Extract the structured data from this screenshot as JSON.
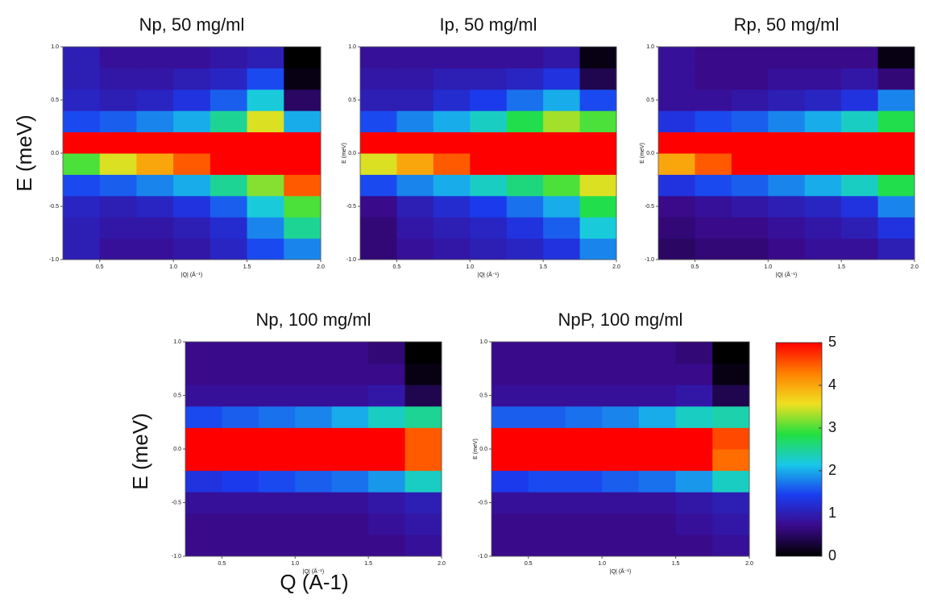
{
  "chart_data": [
    {
      "type": "heatmap",
      "title": "Np, 50 mg/ml",
      "x_label": "|Q| (Å⁻¹)",
      "xlim": [
        0.25,
        2.0
      ],
      "ylim": [
        -1.0,
        1.0
      ],
      "xticks": [
        0.5,
        {
          "value": 1.0,
          "label": "1.0"
        },
        1.5,
        {
          "value": 2.0,
          "label": "2.0"
        }
      ],
      "yticks": [
        {
          "value": -1.0,
          "label": "-1.0"
        },
        -0.5,
        {
          "value": 0.0,
          "label": "0.0"
        },
        0.5,
        {
          "value": 1.0,
          "label": "1.0"
        }
      ],
      "xbins": [
        0.25,
        0.5,
        0.75,
        1.0,
        1.25,
        1.5,
        1.75,
        2.0
      ],
      "ybins": [
        -1.0,
        -0.8,
        -0.6,
        -0.4,
        -0.2,
        0.0,
        0.2,
        0.4,
        0.6,
        0.8,
        1.0
      ],
      "z": [
        [
          1.0,
          0.8,
          0.8,
          0.9,
          1.1,
          1.5,
          1.8
        ],
        [
          1.0,
          0.9,
          0.9,
          1.0,
          1.2,
          1.8,
          2.5
        ],
        [
          1.1,
          1.0,
          1.1,
          1.3,
          1.6,
          2.2,
          3.0
        ],
        [
          1.5,
          1.6,
          1.8,
          2.0,
          2.5,
          3.2,
          4.5
        ],
        [
          3.0,
          3.5,
          4.0,
          4.5,
          5,
          5,
          5
        ],
        [
          5,
          5,
          5,
          5,
          5,
          5,
          5
        ],
        [
          1.5,
          1.6,
          1.8,
          2.0,
          2.5,
          3.5,
          2.0
        ],
        [
          1.1,
          1.0,
          1.1,
          1.3,
          1.6,
          2.2,
          0.5
        ],
        [
          1.0,
          0.9,
          0.9,
          1.0,
          1.1,
          1.5,
          0.1
        ],
        [
          1.0,
          0.8,
          0.8,
          0.8,
          0.9,
          1.0,
          0.0
        ]
      ]
    },
    {
      "type": "heatmap",
      "title": "Ip, 50 mg/ml",
      "x_label": "|Q| (Å⁻¹)",
      "y_label": "E (meV)",
      "xlim": [
        0.25,
        2.0
      ],
      "ylim": [
        -1.0,
        1.0
      ],
      "xticks": [
        0.5,
        {
          "value": 1.0,
          "label": "1.0"
        },
        1.5,
        {
          "value": 2.0,
          "label": "2.0"
        }
      ],
      "yticks": [
        {
          "value": -1.0,
          "label": "-1.0"
        },
        -0.5,
        {
          "value": 0.0,
          "label": "0.0"
        },
        0.5,
        {
          "value": 1.0,
          "label": "1.0"
        }
      ],
      "xbins": [
        0.25,
        0.5,
        0.75,
        1.0,
        1.25,
        1.5,
        1.75,
        2.0
      ],
      "ybins": [
        -1.0,
        -0.8,
        -0.6,
        -0.4,
        -0.2,
        0.0,
        0.2,
        0.4,
        0.6,
        0.8,
        1.0
      ],
      "z": [
        [
          0.6,
          0.8,
          0.9,
          1.0,
          1.1,
          1.3,
          1.8
        ],
        [
          0.6,
          0.9,
          1.0,
          1.1,
          1.3,
          1.6,
          2.2
        ],
        [
          0.7,
          1.0,
          1.2,
          1.4,
          1.7,
          2.0,
          2.8
        ],
        [
          1.5,
          1.8,
          2.0,
          2.3,
          2.6,
          3.0,
          3.5
        ],
        [
          3.5,
          4.0,
          4.5,
          5,
          5,
          5,
          5
        ],
        [
          5,
          5,
          5,
          5,
          5,
          5,
          5
        ],
        [
          1.5,
          1.8,
          2.0,
          2.3,
          2.8,
          3.3,
          3.0
        ],
        [
          1.0,
          1.0,
          1.2,
          1.4,
          1.7,
          2.0,
          1.5
        ],
        [
          0.9,
          0.9,
          1.0,
          1.0,
          1.1,
          1.3,
          0.4
        ],
        [
          0.8,
          0.8,
          0.8,
          0.8,
          0.8,
          0.9,
          0.1
        ]
      ]
    },
    {
      "type": "heatmap",
      "title": "Rp, 50 mg/ml",
      "x_label": "|Q| (Å⁻¹)",
      "y_label": "E (meV)",
      "xlim": [
        0.25,
        2.0
      ],
      "ylim": [
        -1.0,
        1.0
      ],
      "xticks": [
        0.5,
        {
          "value": 1.0,
          "label": "1.0"
        },
        1.5,
        {
          "value": 2.0,
          "label": "2.0"
        }
      ],
      "yticks": [
        {
          "value": -1.0,
          "label": "-1.0"
        },
        -0.5,
        {
          "value": 0.0,
          "label": "0.0"
        },
        0.5,
        {
          "value": 1.0,
          "label": "1.0"
        }
      ],
      "xbins": [
        0.25,
        0.5,
        0.75,
        1.0,
        1.25,
        1.5,
        1.75,
        2.0
      ],
      "ybins": [
        -1.0,
        -0.8,
        -0.6,
        -0.4,
        -0.2,
        0.0,
        0.2,
        0.4,
        0.6,
        0.8,
        1.0
      ],
      "z": [
        [
          0.5,
          0.6,
          0.6,
          0.7,
          0.8,
          0.8,
          1.0
        ],
        [
          0.6,
          0.7,
          0.7,
          0.8,
          0.9,
          1.0,
          1.3
        ],
        [
          0.7,
          0.8,
          0.9,
          1.0,
          1.1,
          1.3,
          1.8
        ],
        [
          1.3,
          1.5,
          1.6,
          1.8,
          2.0,
          2.3,
          2.8
        ],
        [
          4,
          4.5,
          5,
          5,
          5,
          5,
          5
        ],
        [
          5,
          5,
          5,
          5,
          5,
          5,
          5
        ],
        [
          1.3,
          1.5,
          1.6,
          1.8,
          2.0,
          2.3,
          2.8
        ],
        [
          0.8,
          0.8,
          0.9,
          1.0,
          1.1,
          1.3,
          1.8
        ],
        [
          0.8,
          0.7,
          0.7,
          0.8,
          0.8,
          0.9,
          0.6
        ],
        [
          0.8,
          0.7,
          0.7,
          0.7,
          0.7,
          0.7,
          0.1
        ]
      ]
    },
    {
      "type": "heatmap",
      "title": "Np, 100 mg/ml",
      "x_label": "|Q| (Å⁻¹)",
      "xlim": [
        0.25,
        2.0
      ],
      "ylim": [
        -1.0,
        1.0
      ],
      "xticks": [
        0.5,
        {
          "value": 1.0,
          "label": "1.0"
        },
        1.5,
        {
          "value": 2.0,
          "label": "2.0"
        }
      ],
      "yticks": [
        {
          "value": -1.0,
          "label": "-1.0"
        },
        -0.5,
        {
          "value": 0.0,
          "label": "0.0"
        },
        0.5,
        {
          "value": 1.0,
          "label": "1.0"
        }
      ],
      "xbins": [
        0.25,
        0.5,
        0.75,
        1.0,
        1.25,
        1.5,
        1.75,
        2.0
      ],
      "ybins": [
        -1.0,
        -0.8,
        -0.6,
        -0.4,
        -0.2,
        0.0,
        0.2,
        0.4,
        0.6,
        0.8,
        1.0
      ],
      "z": [
        [
          0.7,
          0.7,
          0.7,
          0.7,
          0.7,
          0.7,
          0.8
        ],
        [
          0.7,
          0.7,
          0.7,
          0.7,
          0.7,
          0.8,
          0.9
        ],
        [
          0.8,
          0.8,
          0.8,
          0.8,
          0.8,
          0.9,
          1.0
        ],
        [
          1.3,
          1.4,
          1.5,
          1.6,
          1.7,
          1.9,
          2.3
        ],
        [
          5,
          5,
          5,
          5,
          5,
          5,
          4.5
        ],
        [
          5,
          5,
          5,
          5,
          5,
          5,
          4.5
        ],
        [
          1.5,
          1.6,
          1.7,
          1.8,
          2.0,
          2.3,
          2.5
        ],
        [
          0.8,
          0.8,
          0.8,
          0.8,
          0.8,
          0.9,
          0.4
        ],
        [
          0.7,
          0.7,
          0.7,
          0.7,
          0.7,
          0.7,
          0.1
        ],
        [
          0.7,
          0.7,
          0.7,
          0.7,
          0.7,
          0.6,
          0.0
        ]
      ]
    },
    {
      "type": "heatmap",
      "title": "NpP, 100 mg/ml",
      "x_label": "|Q| (Å⁻¹)",
      "y_label": "E (meV)",
      "xlim": [
        0.25,
        2.0
      ],
      "ylim": [
        -1.0,
        1.0
      ],
      "xticks": [
        0.5,
        {
          "value": 1.0,
          "label": "1.0"
        },
        1.5,
        {
          "value": 2.0,
          "label": "2.0"
        }
      ],
      "yticks": [
        {
          "value": -1.0,
          "label": "-1.0"
        },
        -0.5,
        {
          "value": 0.0,
          "label": "0.0"
        },
        0.5,
        {
          "value": 1.0,
          "label": "1.0"
        }
      ],
      "xbins": [
        0.25,
        0.5,
        0.75,
        1.0,
        1.25,
        1.5,
        1.75,
        2.0
      ],
      "ybins": [
        -1.0,
        -0.8,
        -0.6,
        -0.4,
        -0.2,
        0.0,
        0.2,
        0.4,
        0.6,
        0.8,
        1.0
      ],
      "z": [
        [
          0.7,
          0.7,
          0.7,
          0.7,
          0.7,
          0.7,
          0.8
        ],
        [
          0.7,
          0.7,
          0.7,
          0.7,
          0.7,
          0.8,
          0.9
        ],
        [
          0.8,
          0.8,
          0.8,
          0.8,
          0.8,
          0.9,
          1.0
        ],
        [
          1.4,
          1.5,
          1.5,
          1.6,
          1.7,
          1.9,
          2.3
        ],
        [
          5,
          5,
          5,
          5,
          5,
          5,
          4.4
        ],
        [
          5,
          5,
          5,
          5,
          5,
          5,
          4.6
        ],
        [
          1.6,
          1.6,
          1.7,
          1.8,
          2.0,
          2.3,
          2.4
        ],
        [
          0.8,
          0.8,
          0.8,
          0.8,
          0.8,
          0.9,
          0.4
        ],
        [
          0.7,
          0.7,
          0.7,
          0.7,
          0.7,
          0.7,
          0.1
        ],
        [
          0.7,
          0.7,
          0.7,
          0.7,
          0.7,
          0.6,
          0.0
        ]
      ]
    }
  ],
  "y_label": "E (meV)",
  "x_label": "Q (A-1)",
  "colorbar": {
    "lim": [
      0,
      5
    ],
    "ticks": [
      0,
      1,
      2,
      3,
      4,
      5
    ],
    "colormap": [
      "#000000",
      "#3a0a8c",
      "#1a3cf0",
      "#18c8e8",
      "#22e040",
      "#f0e020",
      "#ff8000",
      "#ff0000"
    ]
  }
}
